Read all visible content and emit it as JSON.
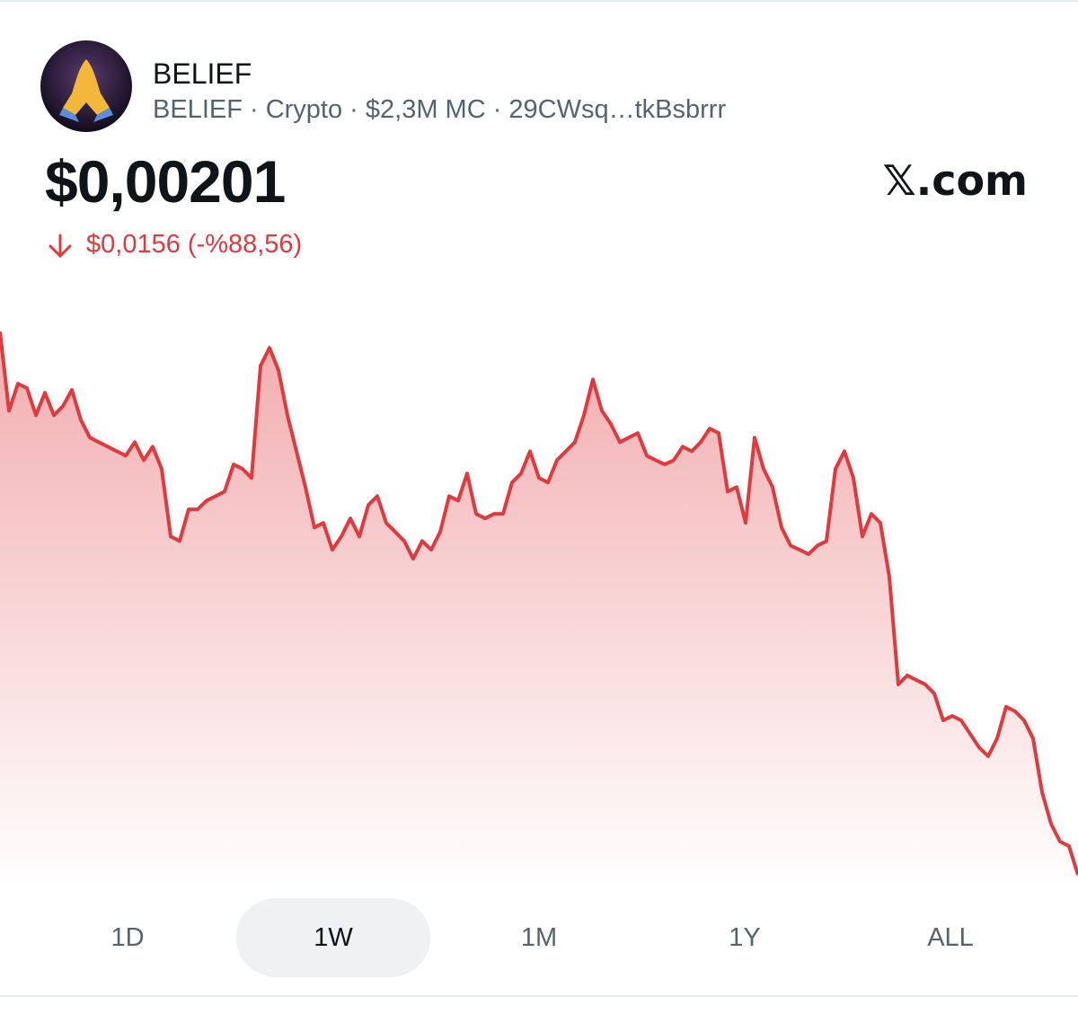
{
  "header": {
    "name": "BELIEF",
    "subtitle": "BELIEF · Crypto · $2,3M MC · 29CWsq…tkBsbrrr",
    "brand": "𝕏.com"
  },
  "price": "$0,00201",
  "change": "$0,0156 (-%88,56)",
  "chart_data": {
    "type": "area",
    "color": "#e0393e",
    "values": [
      0.01761,
      0.01534,
      0.01612,
      0.01599,
      0.01521,
      0.01586,
      0.01521,
      0.01547,
      0.01594,
      0.01508,
      0.01457,
      0.01444,
      0.01431,
      0.01418,
      0.01405,
      0.01444,
      0.01392,
      0.01431,
      0.01367,
      0.01173,
      0.0116,
      0.01251,
      0.01251,
      0.01276,
      0.01289,
      0.01302,
      0.0138,
      0.01367,
      0.01341,
      0.01663,
      0.01715,
      0.0165,
      0.01521,
      0.01418,
      0.01315,
      0.01199,
      0.01212,
      0.01135,
      0.01173,
      0.01225,
      0.01173,
      0.01263,
      0.01289,
      0.01212,
      0.01186,
      0.0116,
      0.01109,
      0.0116,
      0.01135,
      0.01186,
      0.01289,
      0.01276,
      0.01354,
      0.01238,
      0.01225,
      0.01238,
      0.01238,
      0.01328,
      0.01354,
      0.01418,
      0.01341,
      0.01328,
      0.01392,
      0.01418,
      0.01444,
      0.01521,
      0.01624,
      0.01534,
      0.01496,
      0.01444,
      0.01457,
      0.0147,
      0.01405,
      0.01392,
      0.0138,
      0.01392,
      0.01431,
      0.01418,
      0.01444,
      0.01483,
      0.0147,
      0.01302,
      0.01315,
      0.01212,
      0.01457,
      0.01367,
      0.01315,
      0.01199,
      0.01147,
      0.01135,
      0.01122,
      0.01147,
      0.0116,
      0.01367,
      0.01418,
      0.01341,
      0.01173,
      0.01238,
      0.01212,
      0.01057,
      0.00748,
      0.00774,
      0.00761,
      0.00748,
      0.00722,
      0.00645,
      0.00658,
      0.00645,
      0.00606,
      0.00567,
      0.00542,
      0.00593,
      0.00684,
      0.00671,
      0.00645,
      0.00593,
      0.00439,
      0.00348,
      0.00297,
      0.00284,
      0.00201
    ],
    "ylim": [
      0.00168,
      0.0178
    ]
  },
  "tabs": [
    "1D",
    "1W",
    "1M",
    "1Y",
    "ALL"
  ],
  "selected_tab": 1
}
